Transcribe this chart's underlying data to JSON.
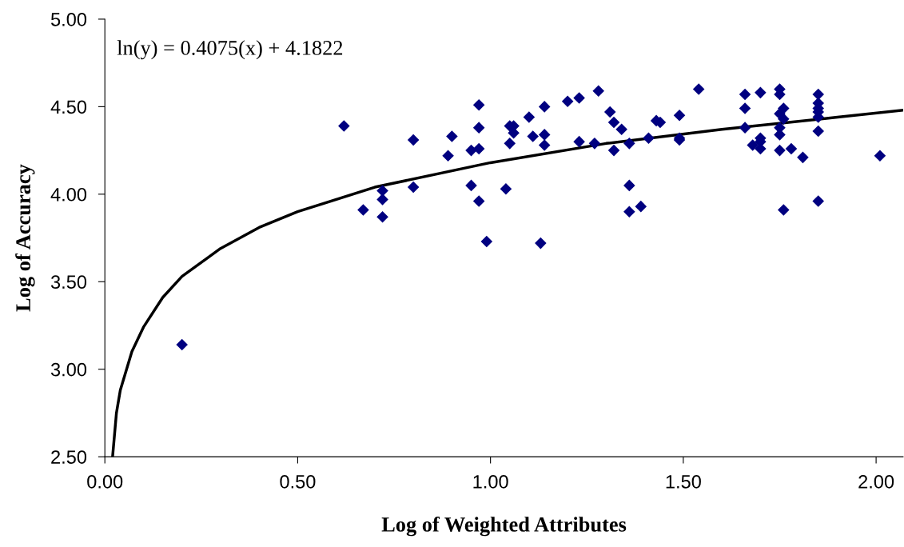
{
  "chart_data": {
    "type": "scatter",
    "xlabel": "Log of Weighted Attributes",
    "ylabel": "Log of Accuracy",
    "annotations": [
      "ln(y) = 0.4075(x) + 4.1822"
    ],
    "xlim": [
      0,
      2.07
    ],
    "xticks": [
      {
        "value": 0,
        "label": "0.00"
      },
      {
        "value": 0.5,
        "label": "0.50"
      },
      {
        "value": 1,
        "label": "1.00"
      },
      {
        "value": 1.5,
        "label": "1.50"
      },
      {
        "value": 2,
        "label": "2.00"
      }
    ],
    "ylim": [
      2.5,
      5
    ],
    "yticks": [
      {
        "value": 2.5,
        "label": "2.50"
      },
      {
        "value": 3,
        "label": "3.00"
      },
      {
        "value": 3.5,
        "label": "3.50"
      },
      {
        "value": 4,
        "label": "4.00"
      },
      {
        "value": 4.5,
        "label": "4.50"
      },
      {
        "value": 5,
        "label": "5.00"
      }
    ],
    "grid": false,
    "legend": false,
    "series": [
      {
        "color": "#000080",
        "marker": "diamond",
        "x": [
          0.2,
          0.62,
          0.67,
          0.72,
          0.72,
          0.72,
          0.8,
          0.8,
          0.89,
          0.9,
          0.95,
          0.95,
          0.97,
          0.97,
          0.97,
          0.97,
          0.99,
          1.04,
          1.05,
          1.06,
          1.06,
          1.05,
          1.1,
          1.11,
          1.13,
          1.14,
          1.14,
          1.14,
          1.2,
          1.23,
          1.23,
          1.28,
          1.27,
          1.31,
          1.32,
          1.32,
          1.34,
          1.36,
          1.36,
          1.36,
          1.39,
          1.41,
          1.43,
          1.44,
          1.49,
          1.49,
          1.49,
          1.54,
          1.66,
          1.66,
          1.66,
          1.7,
          1.68,
          1.7,
          1.7,
          1.7,
          1.75,
          1.75,
          1.76,
          1.75,
          1.76,
          1.75,
          1.75,
          1.75,
          1.78,
          1.76,
          1.81,
          1.85,
          1.85,
          1.85,
          1.85,
          1.85,
          1.85,
          1.85,
          2.01
        ],
        "values": [
          3.14,
          4.39,
          3.91,
          4.02,
          3.97,
          3.87,
          4.31,
          4.04,
          4.22,
          4.33,
          4.25,
          4.05,
          4.51,
          4.38,
          4.26,
          3.96,
          3.73,
          4.03,
          4.39,
          4.39,
          4.35,
          4.29,
          4.44,
          4.33,
          3.72,
          4.5,
          4.34,
          4.28,
          4.53,
          4.55,
          4.3,
          4.59,
          4.29,
          4.47,
          4.41,
          4.25,
          4.37,
          4.29,
          4.05,
          3.9,
          3.93,
          4.32,
          4.42,
          4.41,
          4.45,
          4.32,
          4.31,
          4.6,
          4.57,
          4.49,
          4.38,
          4.58,
          4.28,
          4.32,
          4.3,
          4.26,
          4.6,
          4.57,
          4.49,
          4.46,
          4.43,
          4.38,
          4.34,
          4.25,
          4.26,
          3.91,
          4.21,
          4.57,
          4.52,
          4.49,
          4.47,
          4.44,
          4.36,
          3.96,
          4.22
        ]
      },
      {
        "type": "line",
        "color": "#000000",
        "marker": "none",
        "line_style": "solid",
        "x": [
          0.02,
          0.03,
          0.04,
          0.07,
          0.1,
          0.15,
          0.2,
          0.3,
          0.4,
          0.5,
          0.7,
          1.0,
          1.3,
          1.6,
          1.9,
          2.07
        ],
        "values": [
          2.5,
          2.75,
          2.88,
          3.1,
          3.24,
          3.41,
          3.53,
          3.69,
          3.81,
          3.9,
          4.04,
          4.18,
          4.29,
          4.37,
          4.44,
          4.48
        ]
      }
    ]
  }
}
